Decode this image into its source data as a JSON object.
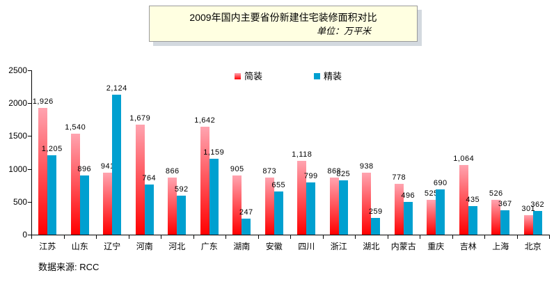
{
  "title": {
    "text": "2009年国内主要省份新建住宅装修面积对比",
    "unit": "单位：万平米"
  },
  "source": "数据来源: RCC",
  "chart_data": {
    "type": "bar",
    "title": "2009年国内主要省份新建住宅装修面积对比",
    "subtitle": "单位：万平米",
    "categories": [
      "江苏",
      "山东",
      "辽宁",
      "河南",
      "河北",
      "广东",
      "湖南",
      "安徽",
      "四川",
      "浙江",
      "湖北",
      "内蒙古",
      "重庆",
      "吉林",
      "上海",
      "北京"
    ],
    "series": [
      {
        "name": "简装",
        "style": "gradient",
        "color_top": "#ffa4b0",
        "color_bottom": "#ff0000",
        "values": [
          1926,
          1540,
          941,
          1679,
          866,
          1642,
          905,
          873,
          1118,
          868,
          938,
          778,
          525,
          1064,
          526,
          301
        ],
        "labels": [
          "1,926",
          "1,540",
          "941",
          "1,679",
          "866",
          "1,642",
          "905",
          "873",
          "1,118",
          "868",
          "938",
          "778",
          "525",
          "1,064",
          "526",
          "301"
        ]
      },
      {
        "name": "精装",
        "style": "solid",
        "color": "#00a0d0",
        "values": [
          1205,
          896,
          2124,
          764,
          592,
          1159,
          247,
          655,
          799,
          825,
          259,
          496,
          690,
          435,
          367,
          362
        ],
        "labels": [
          "1,205",
          "896",
          "2,124",
          "764",
          "592",
          "1,159",
          "247",
          "655",
          "799",
          "825",
          "259",
          "496",
          "690",
          "435",
          "367",
          "362"
        ]
      }
    ],
    "ylim": [
      0,
      2500
    ],
    "yticks": [
      "0",
      "500",
      "1000",
      "1500",
      "2000",
      "2500"
    ],
    "grid": false,
    "legend_position": "top-center",
    "source": "数据来源: RCC"
  }
}
